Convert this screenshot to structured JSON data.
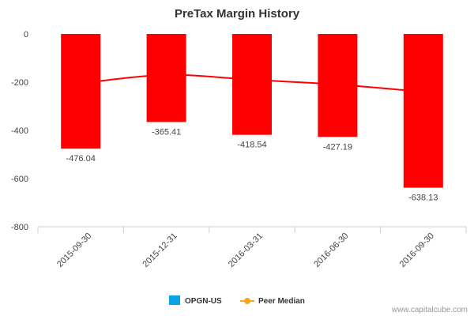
{
  "chart_data": {
    "type": "bar",
    "title": "PreTax Margin History",
    "categories": [
      "2015-09-30",
      "2015-12-31",
      "2016-03-31",
      "2016-06-30",
      "2016-09-30"
    ],
    "series": [
      {
        "name": "OPGN-US",
        "type": "bar",
        "values": [
          -476.04,
          -365.41,
          -418.54,
          -427.19,
          -638.13
        ],
        "color": "#ff0000"
      },
      {
        "name": "Peer Median",
        "type": "line",
        "values": [
          -205,
          -170,
          -190,
          -210,
          -240
        ],
        "color": "#ff0000"
      }
    ],
    "data_labels": [
      "-476.04",
      "-365.41",
      "-418.54",
      "-427.19",
      "-638.13"
    ],
    "ylim": [
      -800,
      0
    ],
    "yticks": [
      0,
      -200,
      -400,
      -600,
      -800
    ],
    "grid": false,
    "legend": {
      "position": "bottom-center",
      "items": [
        {
          "label": "OPGN-US",
          "color": "#0aa3e8",
          "marker": "square"
        },
        {
          "label": "Peer Median",
          "color": "#f5a623",
          "marker": "line-dot"
        }
      ]
    }
  },
  "watermark": "www.capitalcube.com"
}
